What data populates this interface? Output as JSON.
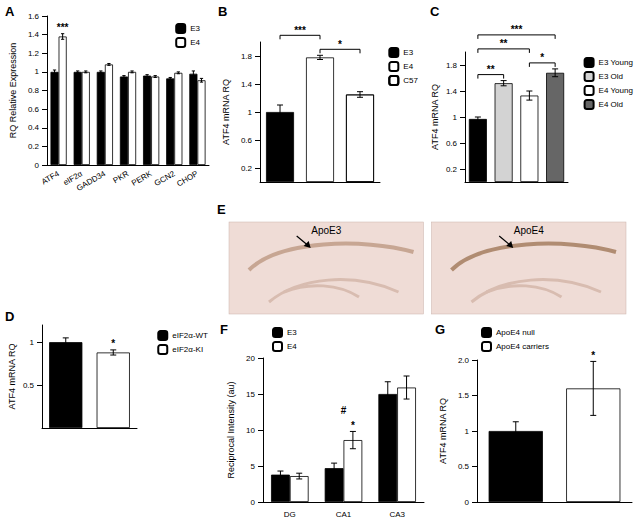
{
  "chart_data": [
    {
      "type": "bar",
      "title": "A",
      "ylabel": "RQ Relative Expression",
      "categories": [
        "ATF4",
        "eIF2α",
        "GADD34",
        "PKR",
        "PERK",
        "GCN2",
        "CHOP"
      ],
      "series": [
        {
          "name": "E3",
          "color": "#000000",
          "values": [
            1.0,
            1.0,
            1.0,
            0.95,
            0.96,
            0.93,
            0.98
          ],
          "errors": [
            0.02,
            0.01,
            0.01,
            0.01,
            0.01,
            0.01,
            0.03
          ]
        },
        {
          "name": "E4",
          "color": "#ffffff",
          "values": [
            1.38,
            1.0,
            1.08,
            1.0,
            0.95,
            0.99,
            0.91
          ],
          "errors": [
            0.03,
            0.01,
            0.01,
            0.01,
            0.01,
            0.01,
            0.02
          ]
        }
      ],
      "ylim": [
        0,
        1.6
      ],
      "yticks": [
        0,
        0.2,
        0.4,
        0.6,
        0.8,
        1,
        1.2,
        1.4,
        1.6
      ],
      "grid": false,
      "legend": "upper right",
      "annotations": [
        {
          "text": "***",
          "category": "ATF4",
          "series": "E4"
        }
      ]
    },
    {
      "type": "bar",
      "title": "B",
      "ylabel": "ATF4 mRNA RQ",
      "categories": [
        "E3",
        "E4",
        "C57"
      ],
      "values": [
        1.0,
        1.78,
        1.25
      ],
      "errors": [
        0.1,
        0.03,
        0.04
      ],
      "colors": [
        "#000000",
        "#ffffff",
        "#ffffff"
      ],
      "ylim": [
        0,
        2
      ],
      "yticks": [
        0.2,
        0.6,
        1,
        1.4,
        1.8
      ],
      "grid": false,
      "legend": "upper right",
      "tick_labels": "y",
      "annotations": [
        {
          "text": "*",
          "from": "E4",
          "to": "C57"
        },
        {
          "text": "***",
          "from": "E3",
          "to": "E4"
        }
      ]
    },
    {
      "type": "bar",
      "title": "C",
      "ylabel": "ATF4 mRNA RQ",
      "categories": [
        "E3 Young",
        "E3 Old",
        "E4 Young",
        "E4 Old"
      ],
      "values": [
        0.97,
        1.52,
        1.33,
        1.68
      ],
      "errors": [
        0.03,
        0.04,
        0.07,
        0.06
      ],
      "colors": [
        "#000000",
        "#d3d3d3",
        "#ffffff",
        "#666666"
      ],
      "ylim": [
        0,
        2
      ],
      "yticks": [
        0.2,
        0.6,
        1,
        1.4,
        1.8
      ],
      "grid": false,
      "legend": "upper right",
      "tick_labels": "y",
      "annotations": [
        {
          "text": "**",
          "from": "E3 Young",
          "to": "E3 Old"
        },
        {
          "text": "*",
          "from": "E4 Young",
          "to": "E4 Old"
        },
        {
          "text": "**",
          "from": "E3 Young",
          "to": "E4 Young"
        },
        {
          "text": "***",
          "from": "E3 Young",
          "to": "E4 Old"
        }
      ]
    },
    {
      "type": "bar",
      "title": "D",
      "ylabel": "ATF4 mRNA RQ",
      "categories": [
        "eIF2α-WT",
        "eIF2α-KI"
      ],
      "values": [
        1.0,
        0.88
      ],
      "errors": [
        0.05,
        0.03
      ],
      "colors": [
        "#000000",
        "#ffffff"
      ],
      "ylim": [
        0,
        1.2
      ],
      "yticks": [
        0.5,
        1
      ],
      "grid": false,
      "legend": "upper right",
      "tick_labels": "y",
      "annotations": [
        {
          "text": "*",
          "category": "eIF2α-KI"
        }
      ]
    },
    {
      "type": "image",
      "title": "E",
      "labels": [
        "ApoE3",
        "ApoE4"
      ]
    },
    {
      "type": "bar",
      "title": "F",
      "ylabel": "Reciprocal Intensity (au)",
      "categories": [
        "DG",
        "CA1",
        "CA3"
      ],
      "series": [
        {
          "name": "E3",
          "color": "#000000",
          "values": [
            3.8,
            4.7,
            15.0
          ],
          "errors": [
            0.5,
            0.7,
            1.7
          ]
        },
        {
          "name": "E4",
          "color": "#ffffff",
          "values": [
            3.6,
            8.6,
            15.9
          ],
          "errors": [
            0.4,
            1.2,
            1.6
          ]
        }
      ],
      "ylim": [
        0,
        20
      ],
      "yticks": [
        0,
        5,
        10,
        15,
        20
      ],
      "grid": false,
      "legend": "upper left",
      "annotations": [
        {
          "text": "#",
          "category": "CA1"
        },
        {
          "text": "*",
          "category": "CA1",
          "series": "E4"
        }
      ]
    },
    {
      "type": "bar",
      "title": "G",
      "ylabel": "ATF4 mRNA RQ",
      "categories": [
        "ApoE4 null",
        "ApoE4 carriers"
      ],
      "values": [
        1.0,
        1.6
      ],
      "errors": [
        0.13,
        0.38
      ],
      "colors": [
        "#000000",
        "#ffffff"
      ],
      "ylim": [
        0,
        2
      ],
      "yticks": [
        0,
        0.5,
        1,
        1.5,
        {
          "value": 2,
          "label": "2.0"
        }
      ],
      "grid": false,
      "legend": "upper left",
      "tick_labels": "y",
      "annotations": [
        {
          "text": "*",
          "category": "ApoE4 carriers"
        }
      ]
    }
  ]
}
